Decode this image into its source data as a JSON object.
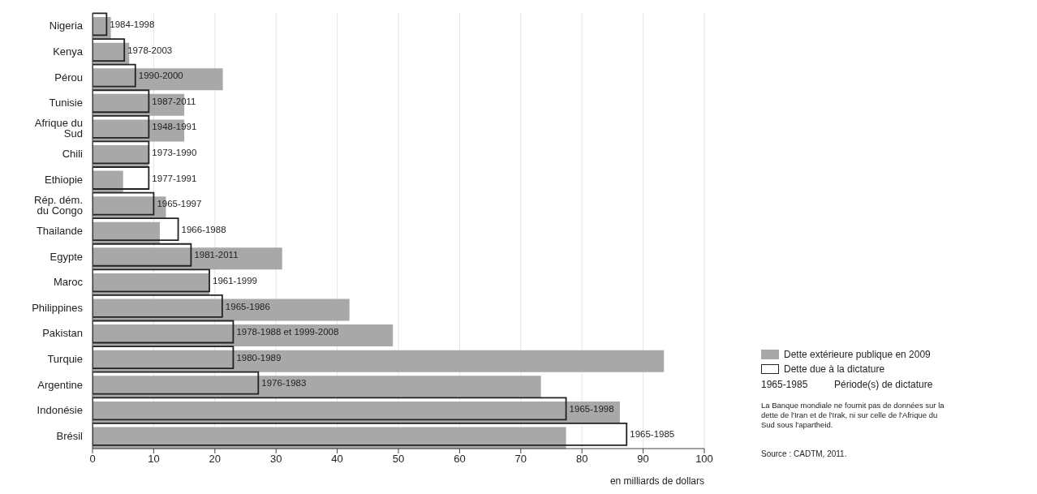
{
  "chart_data": {
    "type": "bar",
    "orientation": "horizontal",
    "categories": [
      "Nigeria",
      "Kenya",
      "Pérou",
      "Tunisie",
      "Afrique du Sud",
      "Chili",
      "Ethiopie",
      "Rép. dém. du Congo",
      "Thailande",
      "Egypte",
      "Maroc",
      "Philippines",
      "Pakistan",
      "Turquie",
      "Argentine",
      "Indonésie",
      "Brésil"
    ],
    "series": [
      {
        "name": "Dette extérieure publique en 2009",
        "color": "#a8a8a8",
        "values": [
          3.0,
          6.0,
          21.3,
          15.0,
          15.0,
          9.2,
          5.0,
          12.0,
          11.0,
          31.0,
          19.1,
          42.0,
          49.1,
          93.4,
          73.3,
          86.2,
          77.4
        ]
      },
      {
        "name": "Dette due à la dictature",
        "color": "#222222",
        "values": [
          2.3,
          5.2,
          7.0,
          9.2,
          9.2,
          9.2,
          9.2,
          10.0,
          14.0,
          16.1,
          19.1,
          21.2,
          23.0,
          23.0,
          27.1,
          77.4,
          87.3
        ],
        "value_labels": [
          "1984-1998",
          "1978-2003",
          "1990-2000",
          "1987-2011",
          "1948-1991",
          "1973-1990",
          "1977-1991",
          "1965-1997",
          "1966-1988",
          "1981-2011",
          "1961-1999",
          "1965-1986",
          "1978-1988 et 1999-2008",
          "1980-1989",
          "1976-1983",
          "1965-1998",
          "1965-1985"
        ]
      }
    ],
    "xlim": [
      0,
      100
    ],
    "xticks": [
      0,
      10,
      20,
      30,
      40,
      50,
      60,
      70,
      80,
      90,
      100
    ],
    "xlabel": "en milliards de dollars",
    "grid": "x",
    "legend": "bottom right",
    "annotations": [
      "1965-1985",
      "Période(s) de dictature",
      "La Banque mondiale ne fournit pas de données sur la dette de l'Iran et de l'Irak, ni sur celle de l'Afrique du Sud sous l'apartheid.",
      "Source : CADTM, 2011."
    ]
  }
}
